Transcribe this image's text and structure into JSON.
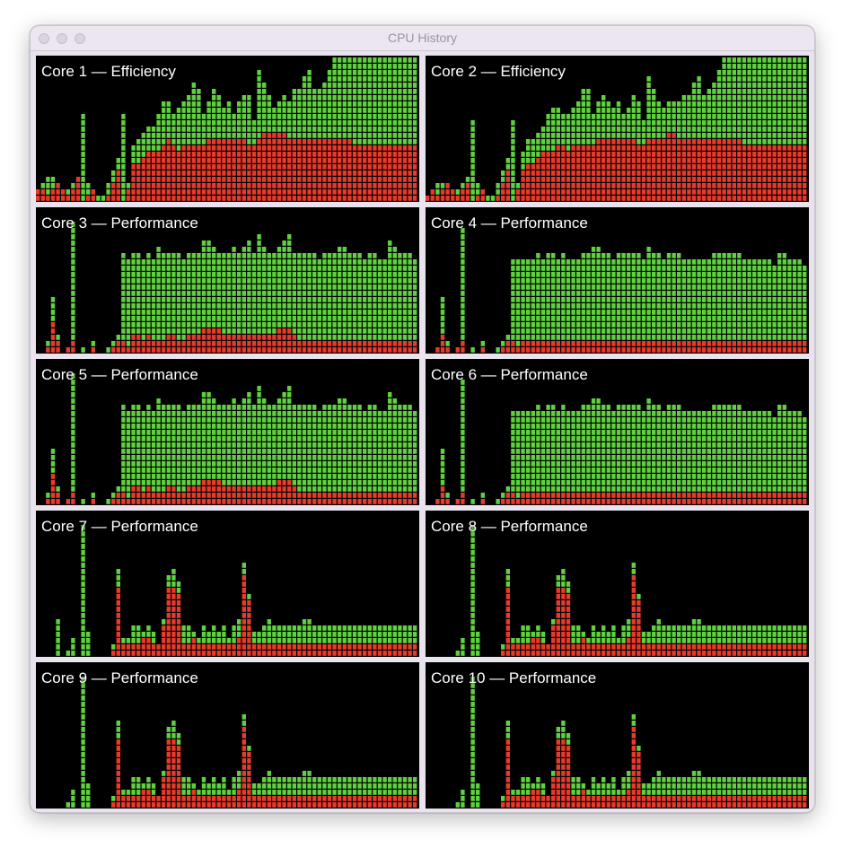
{
  "window": {
    "title": "CPU History"
  },
  "colors": {
    "user": "#5fd040",
    "system": "#e83a2c",
    "background": "#000000"
  },
  "legend_meaning": {
    "red": "system",
    "green": "user"
  },
  "cores": [
    {
      "label": "Core 1 — Efficiency",
      "system": [
        2,
        2,
        1,
        2,
        3,
        2,
        1,
        2,
        4,
        0,
        1,
        2,
        0,
        0,
        1,
        3,
        5,
        0,
        2,
        6,
        6,
        7,
        8,
        8,
        8,
        9,
        10,
        9,
        8,
        9,
        9,
        9,
        9,
        9,
        10,
        10,
        10,
        10,
        10,
        10,
        10,
        10,
        9,
        9,
        10,
        11,
        11,
        11,
        11,
        11,
        10,
        10,
        10,
        10,
        10,
        10,
        10,
        10,
        10,
        10,
        10,
        10,
        10,
        9,
        9,
        9,
        9,
        9,
        9,
        9,
        9,
        9,
        9,
        9,
        9,
        9
      ],
      "total": [
        2,
        3,
        4,
        4,
        3,
        2,
        2,
        3,
        4,
        14,
        3,
        2,
        1,
        1,
        3,
        5,
        7,
        14,
        3,
        9,
        10,
        11,
        12,
        12,
        14,
        16,
        16,
        14,
        15,
        16,
        17,
        19,
        18,
        14,
        16,
        18,
        17,
        15,
        16,
        14,
        16,
        17,
        17,
        13,
        21,
        19,
        17,
        15,
        16,
        17,
        16,
        18,
        18,
        20,
        21,
        18,
        18,
        19,
        21,
        23,
        23,
        23,
        23,
        23,
        23,
        23,
        23,
        23,
        23,
        23,
        23,
        23,
        23,
        23,
        23,
        23
      ]
    },
    {
      "label": "Core 2 — Efficiency",
      "system": [
        1,
        2,
        1,
        2,
        3,
        2,
        1,
        2,
        3,
        0,
        1,
        2,
        0,
        0,
        1,
        3,
        5,
        0,
        2,
        5,
        6,
        6,
        7,
        8,
        8,
        8,
        9,
        9,
        8,
        9,
        9,
        9,
        9,
        9,
        10,
        10,
        10,
        10,
        10,
        10,
        10,
        10,
        9,
        9,
        10,
        10,
        10,
        10,
        11,
        11,
        10,
        10,
        10,
        10,
        10,
        10,
        10,
        10,
        10,
        10,
        10,
        10,
        10,
        9,
        9,
        9,
        9,
        9,
        9,
        9,
        9,
        9,
        9,
        9,
        9,
        9
      ],
      "total": [
        1,
        2,
        3,
        3,
        3,
        2,
        2,
        3,
        4,
        13,
        3,
        2,
        1,
        1,
        3,
        5,
        7,
        13,
        3,
        8,
        10,
        10,
        11,
        12,
        14,
        15,
        15,
        14,
        14,
        15,
        16,
        18,
        18,
        14,
        16,
        17,
        16,
        15,
        16,
        14,
        15,
        17,
        16,
        13,
        20,
        18,
        16,
        15,
        16,
        16,
        16,
        17,
        17,
        19,
        20,
        17,
        18,
        19,
        21,
        23,
        23,
        23,
        23,
        23,
        23,
        23,
        23,
        23,
        23,
        23,
        23,
        23,
        23,
        23,
        23,
        23
      ]
    },
    {
      "label": "Core 3 — Performance",
      "system": [
        0,
        0,
        1,
        5,
        2,
        0,
        1,
        2,
        0,
        0,
        0,
        1,
        0,
        0,
        0,
        1,
        2,
        2,
        1,
        3,
        3,
        2,
        3,
        2,
        2,
        2,
        3,
        3,
        2,
        2,
        3,
        3,
        3,
        4,
        4,
        4,
        4,
        3,
        3,
        3,
        3,
        3,
        3,
        3,
        3,
        3,
        3,
        3,
        4,
        4,
        4,
        3,
        2,
        2,
        2,
        2,
        2,
        2,
        2,
        2,
        2,
        2,
        2,
        2,
        2,
        2,
        2,
        2,
        2,
        2,
        2,
        2,
        2,
        2,
        2,
        2
      ],
      "total": [
        0,
        0,
        2,
        9,
        3,
        0,
        1,
        21,
        0,
        1,
        0,
        2,
        0,
        0,
        1,
        2,
        3,
        16,
        15,
        16,
        16,
        15,
        16,
        15,
        17,
        16,
        16,
        16,
        16,
        15,
        16,
        16,
        16,
        18,
        18,
        17,
        16,
        16,
        16,
        17,
        16,
        17,
        18,
        16,
        19,
        17,
        16,
        16,
        17,
        18,
        19,
        16,
        16,
        16,
        16,
        16,
        15,
        16,
        16,
        16,
        17,
        17,
        16,
        16,
        16,
        15,
        16,
        16,
        15,
        15,
        18,
        17,
        16,
        16,
        16,
        15
      ]
    },
    {
      "label": "Core 4 — Performance",
      "system": [
        0,
        0,
        1,
        3,
        1,
        0,
        1,
        2,
        0,
        0,
        0,
        1,
        0,
        0,
        0,
        1,
        2,
        2,
        1,
        2,
        2,
        2,
        2,
        2,
        2,
        2,
        2,
        2,
        2,
        2,
        2,
        2,
        2,
        2,
        2,
        2,
        2,
        2,
        2,
        2,
        2,
        2,
        2,
        2,
        2,
        2,
        2,
        2,
        2,
        2,
        2,
        2,
        2,
        2,
        2,
        2,
        2,
        2,
        2,
        2,
        2,
        2,
        2,
        2,
        2,
        2,
        2,
        2,
        2,
        2,
        2,
        2,
        2,
        2,
        2,
        2
      ],
      "total": [
        0,
        0,
        1,
        9,
        2,
        0,
        1,
        20,
        0,
        1,
        0,
        2,
        0,
        0,
        1,
        2,
        3,
        15,
        15,
        15,
        15,
        15,
        16,
        15,
        16,
        16,
        15,
        16,
        15,
        15,
        15,
        16,
        16,
        17,
        17,
        16,
        16,
        15,
        16,
        16,
        16,
        16,
        16,
        15,
        17,
        16,
        16,
        15,
        16,
        16,
        16,
        15,
        15,
        15,
        15,
        15,
        15,
        16,
        16,
        16,
        16,
        16,
        16,
        15,
        15,
        15,
        15,
        15,
        15,
        14,
        16,
        16,
        15,
        15,
        15,
        14
      ]
    },
    {
      "label": "Core 5 — Performance",
      "system": [
        0,
        0,
        1,
        5,
        2,
        0,
        1,
        2,
        0,
        0,
        0,
        1,
        0,
        0,
        0,
        1,
        2,
        2,
        1,
        3,
        3,
        2,
        3,
        2,
        2,
        2,
        3,
        3,
        2,
        2,
        3,
        3,
        3,
        4,
        4,
        4,
        4,
        3,
        3,
        3,
        3,
        3,
        3,
        3,
        3,
        3,
        3,
        3,
        4,
        4,
        4,
        3,
        2,
        2,
        2,
        2,
        2,
        2,
        2,
        2,
        2,
        2,
        2,
        2,
        2,
        2,
        2,
        2,
        2,
        2,
        2,
        2,
        2,
        2,
        2,
        2
      ],
      "total": [
        0,
        0,
        2,
        9,
        3,
        0,
        1,
        21,
        0,
        1,
        0,
        2,
        0,
        0,
        1,
        2,
        3,
        16,
        15,
        16,
        16,
        15,
        16,
        15,
        17,
        16,
        16,
        16,
        16,
        15,
        16,
        16,
        16,
        18,
        18,
        17,
        16,
        16,
        16,
        17,
        16,
        17,
        18,
        16,
        19,
        17,
        16,
        16,
        17,
        18,
        19,
        16,
        16,
        16,
        16,
        16,
        15,
        16,
        16,
        16,
        17,
        17,
        16,
        16,
        16,
        15,
        16,
        16,
        15,
        15,
        18,
        17,
        16,
        16,
        16,
        15
      ]
    },
    {
      "label": "Core 6 — Performance",
      "system": [
        0,
        0,
        1,
        3,
        1,
        0,
        1,
        2,
        0,
        0,
        0,
        1,
        0,
        0,
        0,
        1,
        2,
        2,
        1,
        2,
        2,
        2,
        2,
        2,
        2,
        2,
        2,
        2,
        2,
        2,
        2,
        2,
        2,
        2,
        2,
        2,
        2,
        2,
        2,
        2,
        2,
        2,
        2,
        2,
        2,
        2,
        2,
        2,
        2,
        2,
        2,
        2,
        2,
        2,
        2,
        2,
        2,
        2,
        2,
        2,
        2,
        2,
        2,
        2,
        2,
        2,
        2,
        2,
        2,
        2,
        2,
        2,
        2,
        2,
        2,
        2
      ],
      "total": [
        0,
        0,
        1,
        9,
        2,
        0,
        1,
        20,
        0,
        1,
        0,
        2,
        0,
        0,
        1,
        2,
        3,
        15,
        15,
        15,
        15,
        15,
        16,
        15,
        16,
        16,
        15,
        16,
        15,
        15,
        15,
        16,
        16,
        17,
        17,
        16,
        16,
        15,
        16,
        16,
        16,
        16,
        16,
        15,
        17,
        16,
        16,
        15,
        16,
        16,
        16,
        15,
        15,
        15,
        15,
        15,
        15,
        16,
        16,
        16,
        16,
        16,
        16,
        15,
        15,
        15,
        15,
        15,
        15,
        14,
        16,
        16,
        15,
        15,
        15,
        14
      ]
    },
    {
      "label": "Core 7 — Performance",
      "system": [
        0,
        0,
        0,
        0,
        0,
        0,
        0,
        0,
        0,
        0,
        0,
        0,
        0,
        0,
        0,
        1,
        11,
        2,
        2,
        2,
        2,
        3,
        3,
        2,
        2,
        5,
        11,
        11,
        10,
        2,
        2,
        3,
        2,
        2,
        2,
        2,
        2,
        2,
        2,
        2,
        3,
        13,
        9,
        2,
        2,
        2,
        2,
        2,
        2,
        2,
        2,
        2,
        2,
        2,
        2,
        2,
        2,
        2,
        2,
        2,
        2,
        2,
        2,
        2,
        2,
        2,
        2,
        2,
        2,
        2,
        2,
        2,
        2,
        2,
        2,
        2
      ],
      "total": [
        0,
        0,
        0,
        0,
        6,
        0,
        1,
        3,
        0,
        21,
        4,
        0,
        0,
        0,
        0,
        2,
        14,
        3,
        3,
        5,
        5,
        4,
        5,
        4,
        2,
        6,
        13,
        14,
        12,
        5,
        5,
        4,
        3,
        5,
        4,
        5,
        4,
        5,
        3,
        5,
        6,
        15,
        10,
        4,
        4,
        5,
        6,
        5,
        5,
        5,
        5,
        5,
        5,
        6,
        6,
        5,
        5,
        5,
        5,
        5,
        5,
        5,
        5,
        5,
        5,
        5,
        5,
        5,
        5,
        5,
        5,
        5,
        5,
        5,
        5,
        5
      ]
    },
    {
      "label": "Core 8 — Performance",
      "system": [
        0,
        0,
        0,
        0,
        0,
        0,
        0,
        0,
        0,
        0,
        0,
        0,
        0,
        0,
        0,
        1,
        11,
        2,
        2,
        2,
        2,
        3,
        3,
        2,
        2,
        5,
        11,
        11,
        10,
        2,
        2,
        3,
        2,
        2,
        2,
        2,
        2,
        2,
        2,
        2,
        3,
        13,
        9,
        2,
        2,
        2,
        2,
        2,
        2,
        2,
        2,
        2,
        2,
        2,
        2,
        2,
        2,
        2,
        2,
        2,
        2,
        2,
        2,
        2,
        2,
        2,
        2,
        2,
        2,
        2,
        2,
        2,
        2,
        2,
        2,
        2
      ],
      "total": [
        0,
        0,
        0,
        0,
        0,
        0,
        1,
        3,
        0,
        21,
        4,
        0,
        0,
        0,
        0,
        2,
        14,
        3,
        3,
        5,
        5,
        4,
        5,
        4,
        2,
        6,
        13,
        14,
        12,
        5,
        5,
        4,
        3,
        5,
        4,
        5,
        4,
        5,
        3,
        5,
        6,
        15,
        10,
        4,
        4,
        5,
        6,
        5,
        5,
        5,
        5,
        5,
        5,
        6,
        6,
        5,
        5,
        5,
        5,
        5,
        5,
        5,
        5,
        5,
        5,
        5,
        5,
        5,
        5,
        5,
        5,
        5,
        5,
        5,
        5,
        5
      ]
    },
    {
      "label": "Core 9 — Performance",
      "system": [
        0,
        0,
        0,
        0,
        0,
        0,
        0,
        0,
        0,
        0,
        0,
        0,
        0,
        0,
        0,
        1,
        11,
        2,
        2,
        2,
        2,
        3,
        3,
        2,
        2,
        5,
        11,
        11,
        10,
        2,
        2,
        3,
        2,
        2,
        2,
        2,
        2,
        2,
        2,
        2,
        3,
        13,
        9,
        2,
        2,
        2,
        2,
        2,
        2,
        2,
        2,
        2,
        2,
        2,
        2,
        2,
        2,
        2,
        2,
        2,
        2,
        2,
        2,
        2,
        2,
        2,
        2,
        2,
        2,
        2,
        2,
        2,
        2,
        2,
        2,
        2
      ],
      "total": [
        0,
        0,
        0,
        0,
        0,
        0,
        1,
        3,
        0,
        21,
        4,
        0,
        0,
        0,
        0,
        2,
        14,
        3,
        3,
        5,
        5,
        4,
        5,
        4,
        2,
        6,
        13,
        14,
        12,
        5,
        5,
        4,
        3,
        5,
        4,
        5,
        4,
        5,
        3,
        5,
        6,
        15,
        10,
        4,
        4,
        5,
        6,
        5,
        5,
        5,
        5,
        5,
        5,
        6,
        6,
        5,
        5,
        5,
        5,
        5,
        5,
        5,
        5,
        5,
        5,
        5,
        5,
        5,
        5,
        5,
        5,
        5,
        5,
        5,
        5,
        5
      ]
    },
    {
      "label": "Core 10 — Performance",
      "system": [
        0,
        0,
        0,
        0,
        0,
        0,
        0,
        0,
        0,
        0,
        0,
        0,
        0,
        0,
        0,
        1,
        11,
        2,
        2,
        2,
        2,
        3,
        3,
        2,
        2,
        5,
        11,
        11,
        10,
        2,
        2,
        3,
        2,
        2,
        2,
        2,
        2,
        2,
        2,
        2,
        3,
        13,
        9,
        2,
        2,
        2,
        2,
        2,
        2,
        2,
        2,
        2,
        2,
        2,
        2,
        2,
        2,
        2,
        2,
        2,
        2,
        2,
        2,
        2,
        2,
        2,
        2,
        2,
        2,
        2,
        2,
        2,
        2,
        2,
        2,
        2
      ],
      "total": [
        0,
        0,
        0,
        0,
        0,
        0,
        1,
        3,
        0,
        21,
        4,
        0,
        0,
        0,
        0,
        2,
        14,
        3,
        3,
        5,
        5,
        4,
        5,
        4,
        2,
        6,
        13,
        14,
        12,
        5,
        5,
        4,
        3,
        5,
        4,
        5,
        4,
        5,
        3,
        5,
        6,
        15,
        10,
        4,
        4,
        5,
        6,
        5,
        5,
        5,
        5,
        5,
        5,
        6,
        6,
        5,
        5,
        5,
        5,
        5,
        5,
        5,
        5,
        5,
        5,
        5,
        5,
        5,
        5,
        5,
        5,
        5,
        5,
        5,
        5,
        5
      ]
    }
  ]
}
